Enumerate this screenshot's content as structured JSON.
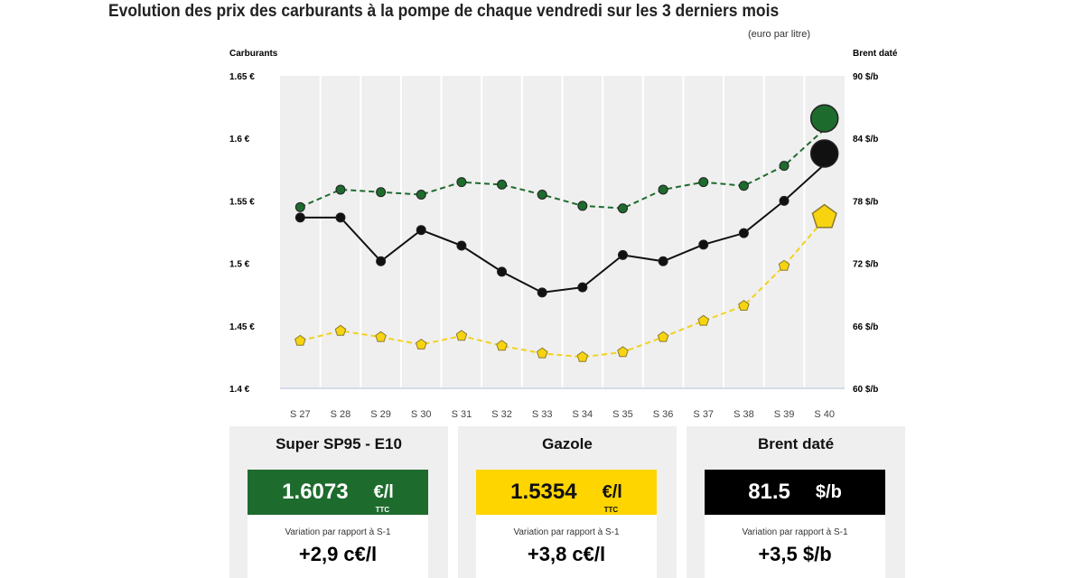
{
  "title": "Evolution des prix des carburants à la pompe de chaque vendredi sur les 3  derniers mois",
  "unit_note": "(euro par litre)",
  "chart_data": {
    "type": "line",
    "title": "Evolution des prix des carburants à la pompe de chaque vendredi sur les 3  derniers mois",
    "ylabel_left": "Carburants",
    "ylabel_right": "Brent daté",
    "ylim_left": [
      1.4,
      1.65
    ],
    "ylim_right": [
      60,
      90
    ],
    "yticks_left": [
      "1.65 €",
      "1.6 €",
      "1.55 €",
      "1.5 €",
      "1.45 €",
      "1.4 €"
    ],
    "yticks_right": [
      "90 $/b",
      "84 $/b",
      "78 $/b",
      "72 $/b",
      "66 $/b",
      "60 $/b"
    ],
    "categories": [
      "S 27",
      "S 28",
      "S 29",
      "S 30",
      "S 31",
      "S 32",
      "S 33",
      "S 34",
      "S 35",
      "S 36",
      "S 37",
      "S 38",
      "S 39",
      "S 40"
    ],
    "series": [
      {
        "name": "Super SP95 - E10",
        "axis": "left",
        "color": "#1e6b2e",
        "dash": true,
        "values": [
          1.545,
          1.559,
          1.557,
          1.555,
          1.565,
          1.563,
          1.555,
          1.546,
          1.544,
          1.559,
          1.565,
          1.562,
          1.578,
          1.6073
        ]
      },
      {
        "name": "Brent daté",
        "axis": "right",
        "color": "#111111",
        "dash": false,
        "values": [
          76.4,
          76.4,
          72.2,
          75.2,
          73.7,
          71.2,
          69.2,
          69.7,
          72.8,
          72.2,
          73.8,
          74.9,
          78.0,
          81.5
        ]
      },
      {
        "name": "Gazole",
        "axis": "left",
        "color": "#f2d21b",
        "dash": true,
        "values": [
          1.438,
          1.446,
          1.441,
          1.435,
          1.442,
          1.434,
          1.428,
          1.425,
          1.429,
          1.441,
          1.454,
          1.466,
          1.498,
          1.5354
        ]
      }
    ],
    "grid": true
  },
  "cards": [
    {
      "name": "Super SP95 - E10",
      "value": "1.6073",
      "unit": "€/l",
      "ttc": "TTC",
      "variation_label": "Variation par rapport à S-1",
      "variation": "+2,9 c€/l",
      "bg": "#1e6b2e",
      "fg": "#ffffff"
    },
    {
      "name": "Gazole",
      "value": "1.5354",
      "unit": "€/l",
      "ttc": "TTC",
      "variation_label": "Variation par rapport à S-1",
      "variation": "+3,8 c€/l",
      "bg": "#ffd500",
      "fg": "#111111"
    },
    {
      "name": "Brent daté",
      "value": "81.5",
      "unit": "$/b",
      "ttc": "",
      "variation_label": "Variation par rapport à S-1",
      "variation": "+3,5 $/b",
      "bg": "#000000",
      "fg": "#ffffff"
    }
  ]
}
